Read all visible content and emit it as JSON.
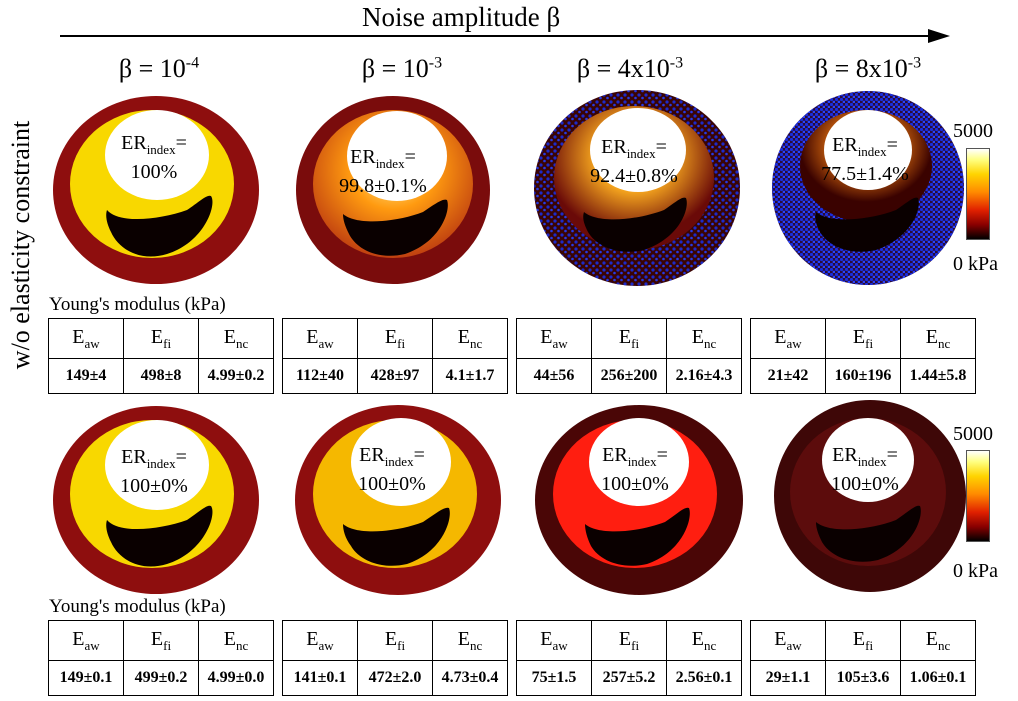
{
  "header": {
    "noise_axis_label": "Noise amplitude β",
    "row_label": "w/o elasticity constraint",
    "columns": [
      {
        "base": "β = 10",
        "exp": "-4"
      },
      {
        "base": "β = 10",
        "exp": "-3"
      },
      {
        "base": "β = 4x10",
        "exp": "-3"
      },
      {
        "base": "β = 8x10",
        "exp": "-3"
      }
    ]
  },
  "colorbar": {
    "max_label": "5000",
    "min_label": "0 kPa"
  },
  "er_text": {
    "prefix": "ER",
    "sub": "index",
    "suffix": "="
  },
  "table_text": {
    "title": "Young's modulus (kPa)",
    "headers": [
      {
        "base": "E",
        "sub": "aw"
      },
      {
        "base": "E",
        "sub": "fi"
      },
      {
        "base": "E",
        "sub": "nc"
      }
    ]
  },
  "rows": [
    {
      "panels": [
        {
          "er_value": "100%",
          "values": [
            "149±4",
            "498±8",
            "4.99±0.2"
          ]
        },
        {
          "er_value": "99.8±0.1%",
          "values": [
            "112±40",
            "428±97",
            "4.1±1.7"
          ]
        },
        {
          "er_value": "92.4±0.8%",
          "values": [
            "44±56",
            "256±200",
            "2.16±4.3"
          ]
        },
        {
          "er_value": "77.5±1.4%",
          "values": [
            "21±42",
            "160±196",
            "1.44±5.8"
          ]
        }
      ]
    },
    {
      "panels": [
        {
          "er_value": "100±0%",
          "values": [
            "149±0.1",
            "499±0.2",
            "4.99±0.0"
          ]
        },
        {
          "er_value": "100±0%",
          "values": [
            "141±0.1",
            "472±2.0",
            "4.73±0.4"
          ]
        },
        {
          "er_value": "100±0%",
          "values": [
            "75±1.5",
            "257±5.2",
            "2.56±0.1"
          ]
        },
        {
          "er_value": "100±0%",
          "values": [
            "29±1.1",
            "105±3.6",
            "1.06±0.1"
          ]
        }
      ]
    }
  ],
  "colors": {
    "outer_wall": "#8e0e0e",
    "fibrous_cap": "#f8d800",
    "necrotic_core": "#0a0000",
    "noise_dots": "#1a2ee0"
  }
}
